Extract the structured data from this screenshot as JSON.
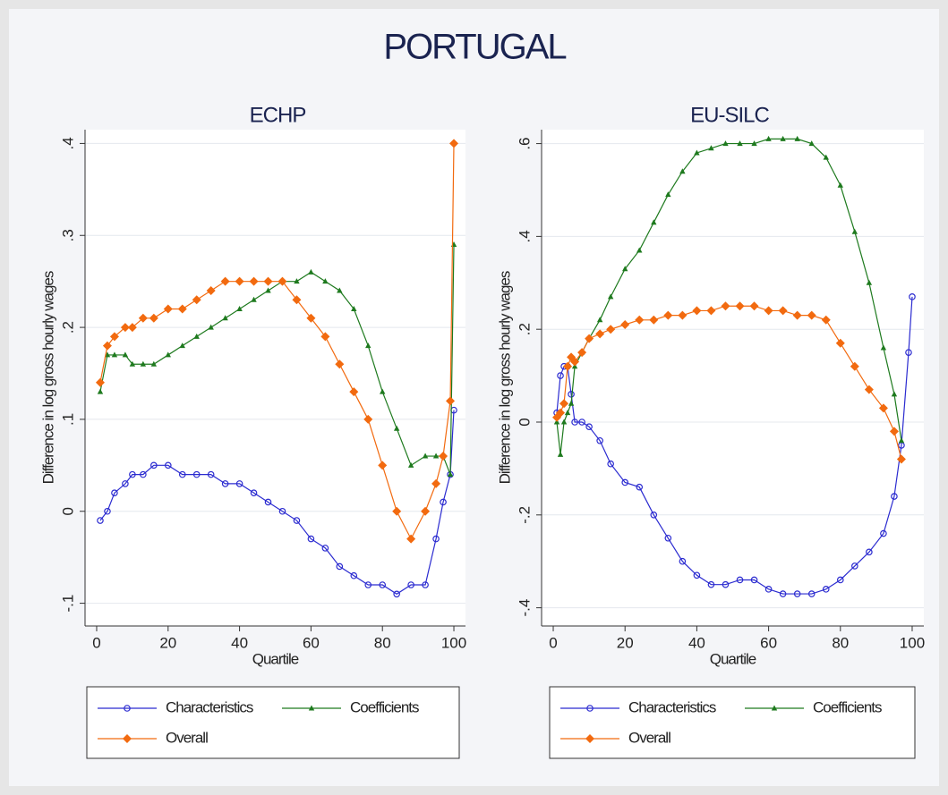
{
  "title": "PORTUGAL",
  "chart_data": [
    {
      "type": "line",
      "title": "ECHP",
      "x_label": "Quartile",
      "y_label": "Difference in log gross hourly wages",
      "x": [
        1,
        3,
        5,
        8,
        10,
        13,
        16,
        20,
        24,
        28,
        32,
        36,
        40,
        44,
        48,
        52,
        56,
        60,
        64,
        68,
        72,
        76,
        80,
        84,
        88,
        92,
        95,
        97,
        99,
        100
      ],
      "xlim": [
        -2,
        102
      ],
      "xticks": [
        0,
        20,
        40,
        60,
        80,
        100
      ],
      "ylim": [
        -0.115,
        0.415
      ],
      "yticks": [
        {
          "value": -0.1,
          "label": "-.1"
        },
        0,
        {
          "value": 0.1,
          "label": ".1"
        },
        {
          "value": 0.2,
          "label": ".2"
        },
        {
          "value": 0.3,
          "label": ".3"
        },
        {
          "value": 0.4,
          "label": ".4"
        }
      ],
      "grid": true,
      "series": [
        {
          "name": "Characteristics",
          "color": "#2b2bd0",
          "marker": "circle",
          "values": [
            -0.01,
            0.0,
            0.02,
            0.03,
            0.04,
            0.04,
            0.05,
            0.05,
            0.04,
            0.04,
            0.04,
            0.03,
            0.03,
            0.02,
            0.01,
            0.0,
            -0.01,
            -0.03,
            -0.04,
            -0.06,
            -0.07,
            -0.08,
            -0.08,
            -0.09,
            -0.08,
            -0.08,
            -0.03,
            0.01,
            0.04,
            0.11
          ]
        },
        {
          "name": "Coefficients",
          "color": "#1e7a1e",
          "marker": "triangle",
          "values": [
            0.13,
            0.17,
            0.17,
            0.17,
            0.16,
            0.16,
            0.16,
            0.17,
            0.18,
            0.19,
            0.2,
            0.21,
            0.22,
            0.23,
            0.24,
            0.25,
            0.25,
            0.26,
            0.25,
            0.24,
            0.22,
            0.18,
            0.13,
            0.09,
            0.05,
            0.06,
            0.06,
            0.06,
            0.04,
            0.29
          ]
        },
        {
          "name": "Overall",
          "color": "#f26a0f",
          "marker": "diamond",
          "values": [
            0.14,
            0.18,
            0.19,
            0.2,
            0.2,
            0.21,
            0.21,
            0.22,
            0.22,
            0.23,
            0.24,
            0.25,
            0.25,
            0.25,
            0.25,
            0.25,
            0.23,
            0.21,
            0.19,
            0.16,
            0.13,
            0.1,
            0.05,
            0.0,
            -0.03,
            0.0,
            0.03,
            0.06,
            0.12,
            0.4
          ]
        }
      ]
    },
    {
      "type": "line",
      "title": "EU-SILC",
      "x_label": "Quartile",
      "y_label": "Difference in log gross hourly wages",
      "x": [
        1,
        2,
        3,
        4,
        5,
        6,
        8,
        10,
        13,
        16,
        20,
        24,
        28,
        32,
        36,
        40,
        44,
        48,
        52,
        56,
        60,
        64,
        68,
        72,
        76,
        80,
        84,
        88,
        92,
        95,
        97,
        99,
        100
      ],
      "xlim": [
        -2,
        102
      ],
      "xticks": [
        0,
        20,
        40,
        60,
        80,
        100
      ],
      "ylim": [
        -0.42,
        0.63
      ],
      "yticks": [
        {
          "value": -0.4,
          "label": "-.4"
        },
        {
          "value": -0.2,
          "label": "-.2"
        },
        0,
        {
          "value": 0.2,
          "label": ".2"
        },
        {
          "value": 0.4,
          "label": ".4"
        },
        {
          "value": 0.6,
          "label": ".6"
        }
      ],
      "grid": true,
      "series": [
        {
          "name": "Characteristics",
          "color": "#2b2bd0",
          "marker": "circle",
          "values": [
            0.02,
            0.1,
            0.12,
            0.12,
            0.06,
            0.0,
            0.0,
            -0.01,
            -0.04,
            -0.09,
            -0.13,
            -0.14,
            -0.2,
            -0.25,
            -0.3,
            -0.33,
            -0.35,
            -0.35,
            -0.34,
            -0.34,
            -0.36,
            -0.37,
            -0.37,
            -0.37,
            -0.36,
            -0.34,
            -0.31,
            -0.28,
            -0.24,
            -0.16,
            -0.05,
            0.15,
            0.27
          ]
        },
        {
          "name": "Coefficients",
          "color": "#1e7a1e",
          "marker": "triangle",
          "values": [
            0.0,
            -0.07,
            0.0,
            0.02,
            0.04,
            0.12,
            0.15,
            0.18,
            0.22,
            0.27,
            0.33,
            0.37,
            0.43,
            0.49,
            0.54,
            0.58,
            0.59,
            0.6,
            0.6,
            0.6,
            0.61,
            0.61,
            0.61,
            0.6,
            0.57,
            0.51,
            0.41,
            0.3,
            0.16,
            0.06,
            -0.04,
            null,
            null
          ]
        },
        {
          "name": "Overall",
          "color": "#f26a0f",
          "marker": "diamond",
          "values": [
            0.01,
            0.02,
            0.04,
            0.12,
            0.14,
            0.13,
            0.15,
            0.18,
            0.19,
            0.2,
            0.21,
            0.22,
            0.22,
            0.23,
            0.23,
            0.24,
            0.24,
            0.25,
            0.25,
            0.25,
            0.24,
            0.24,
            0.23,
            0.23,
            0.22,
            0.17,
            0.12,
            0.07,
            0.03,
            -0.02,
            -0.08,
            null,
            null
          ]
        }
      ]
    }
  ]
}
